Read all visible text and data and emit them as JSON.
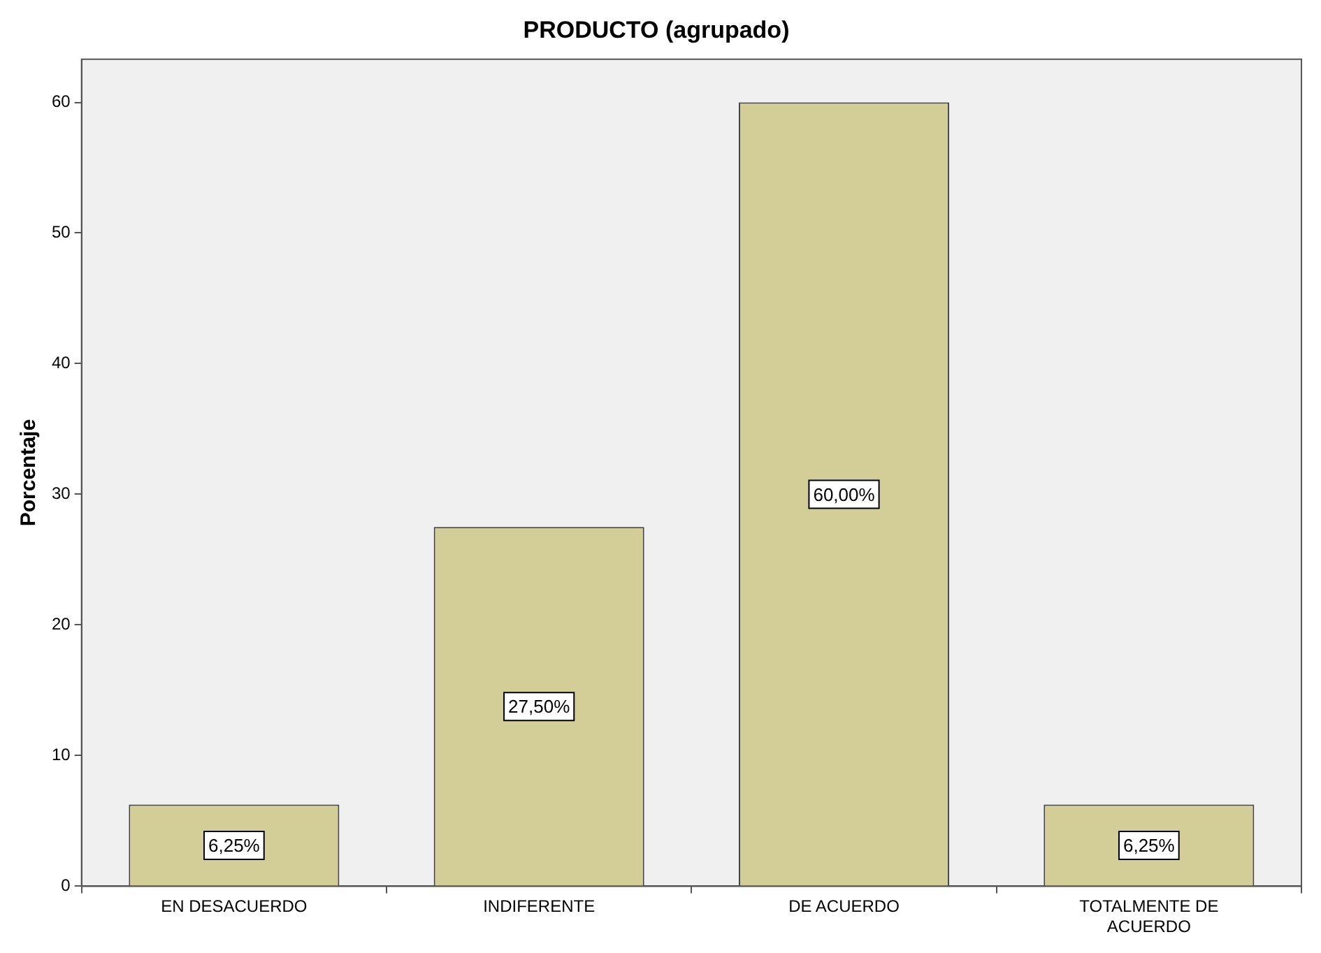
{
  "chart_data": {
    "type": "bar",
    "title": "PRODUCTO (agrupado)",
    "ylabel": "Porcentaje",
    "categories": [
      "EN DESACUERDO",
      "INDIFERENTE",
      "DE ACUERDO",
      "TOTALMENTE DE ACUERDO"
    ],
    "values": [
      6.25,
      27.5,
      60,
      6.25
    ],
    "value_labels": [
      "6,25%",
      "27,50%",
      "60,00%",
      "6,25%"
    ],
    "color": "#d3ce98",
    "ylim": [
      0,
      63.3
    ],
    "yticks": [
      0,
      10,
      20,
      30,
      40,
      50,
      60
    ],
    "grid": false,
    "legend": false
  }
}
